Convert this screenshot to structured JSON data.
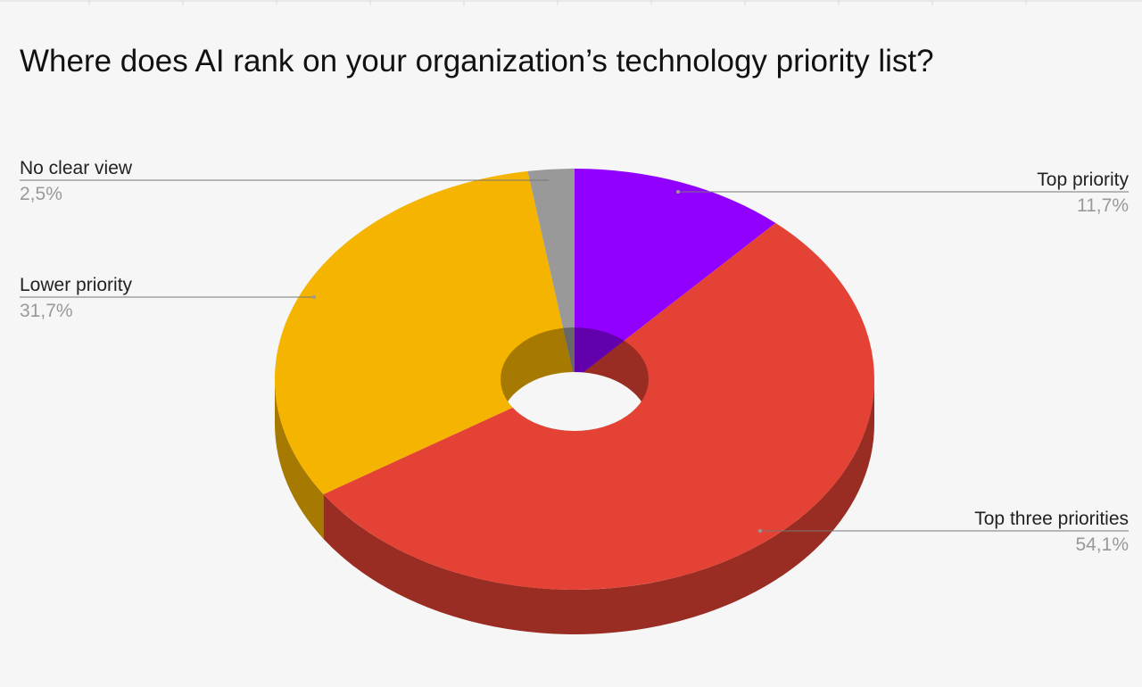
{
  "chart_data": {
    "type": "pie",
    "title": "Where does AI rank on your organization’s technology priority list?",
    "categories": [
      "Top priority",
      "Top three priorities",
      "Lower priority",
      "No clear view"
    ],
    "values": [
      11.7,
      54.1,
      31.7,
      2.5
    ],
    "value_labels": [
      "11,7%",
      "54,1%",
      "31,7%",
      "2,5%"
    ],
    "colors": [
      "#9100ff",
      "#e34234",
      "#f4b400",
      "#999999"
    ],
    "donut": true,
    "three_d": true
  }
}
